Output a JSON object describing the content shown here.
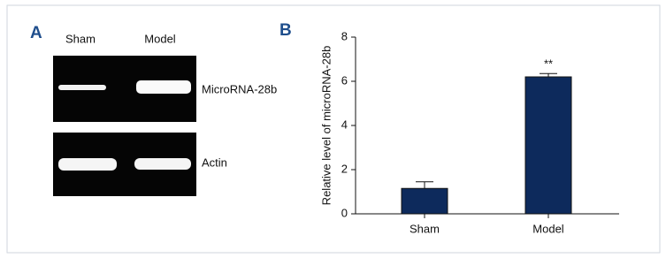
{
  "panel_a": {
    "label": "A",
    "lanes": [
      "Sham",
      "Model"
    ],
    "rows": [
      "MicroRNA-28b",
      "Actin"
    ]
  },
  "chart_data": {
    "type": "bar",
    "panel_label": "B",
    "ylabel": "Relative level of microRNA-28b",
    "categories": [
      "Sham",
      "Model"
    ],
    "values": [
      1.15,
      6.2
    ],
    "errors": [
      0.3,
      0.15
    ],
    "significance": [
      null,
      "**"
    ],
    "color": "#0d2a5c",
    "ylim": [
      0,
      8
    ],
    "yticks": [
      0,
      2,
      4,
      6,
      8
    ]
  }
}
